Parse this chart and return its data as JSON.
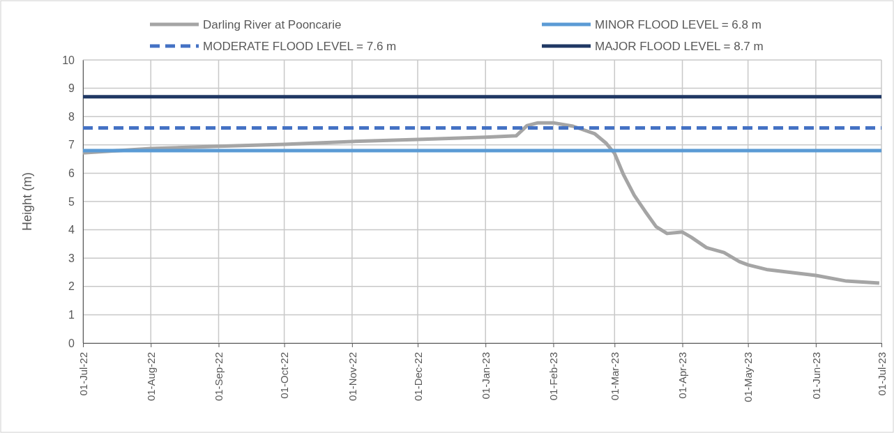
{
  "chart_data": {
    "type": "line",
    "ylabel": "Height (m)",
    "xlim": [
      "2022-07-01",
      "2023-07-01"
    ],
    "xticks": [
      {
        "value": "2022-07-01",
        "label": "01-Jul-22"
      },
      {
        "value": "2022-08-01",
        "label": "01-Aug-22"
      },
      {
        "value": "2022-09-01",
        "label": "01-Sep-22"
      },
      {
        "value": "2022-10-01",
        "label": "01-Oct-22"
      },
      {
        "value": "2022-11-01",
        "label": "01-Nov-22"
      },
      {
        "value": "2022-12-01",
        "label": "01-Dec-22"
      },
      {
        "value": "2023-01-01",
        "label": "01-Jan-23"
      },
      {
        "value": "2023-02-01",
        "label": "01-Feb-23"
      },
      {
        "value": "2023-03-01",
        "label": "01-Mar-23"
      },
      {
        "value": "2023-04-01",
        "label": "01-Apr-23"
      },
      {
        "value": "2023-05-01",
        "label": "01-May-23"
      },
      {
        "value": "2023-06-01",
        "label": "01-Jun-23"
      },
      {
        "value": "2023-07-01",
        "label": "01-Jul-23"
      }
    ],
    "ylim": [
      0,
      10
    ],
    "yticks": [
      0,
      1,
      2,
      3,
      4,
      5,
      6,
      7,
      8,
      9,
      10
    ],
    "grid": true,
    "legend": "top",
    "marker": "none",
    "series": [
      {
        "name": "Darling River at Pooncarie",
        "color": "#a5a5a5",
        "line_style": "solid",
        "x": [
          "2022-07-01",
          "2022-08-01",
          "2022-09-01",
          "2022-10-01",
          "2022-11-01",
          "2022-12-01",
          "2023-01-01",
          "2023-01-15",
          "2023-01-20",
          "2023-01-25",
          "2023-02-01",
          "2023-02-10",
          "2023-02-20",
          "2023-02-25",
          "2023-03-01",
          "2023-03-05",
          "2023-03-10",
          "2023-03-15",
          "2023-03-20",
          "2023-03-25",
          "2023-04-01",
          "2023-04-05",
          "2023-04-12",
          "2023-04-20",
          "2023-04-27",
          "2023-05-01",
          "2023-05-10",
          "2023-06-01",
          "2023-06-15",
          "2023-06-30"
        ],
        "values": [
          6.72,
          6.87,
          6.95,
          7.02,
          7.12,
          7.19,
          7.27,
          7.32,
          7.68,
          7.78,
          7.78,
          7.66,
          7.39,
          7.07,
          6.7,
          5.96,
          5.22,
          4.65,
          4.11,
          3.87,
          3.92,
          3.74,
          3.37,
          3.2,
          2.88,
          2.76,
          2.59,
          2.39,
          2.19,
          2.12
        ]
      },
      {
        "name": "MINOR FLOOD LEVEL = 6.8 m",
        "color": "#5b9bd5",
        "line_style": "solid",
        "x": [
          "2022-07-01",
          "2023-07-01"
        ],
        "values": [
          6.8,
          6.8
        ]
      },
      {
        "name": "MODERATE FLOOD LEVEL = 7.6 m",
        "color": "#4472c4",
        "line_style": "dashed",
        "x": [
          "2022-07-01",
          "2023-07-01"
        ],
        "values": [
          7.6,
          7.6
        ]
      },
      {
        "name": "MAJOR FLOOD LEVEL = 8.7 m",
        "color": "#203864",
        "line_style": "solid",
        "x": [
          "2022-07-01",
          "2023-07-01"
        ],
        "values": [
          8.7,
          8.7
        ]
      }
    ]
  }
}
